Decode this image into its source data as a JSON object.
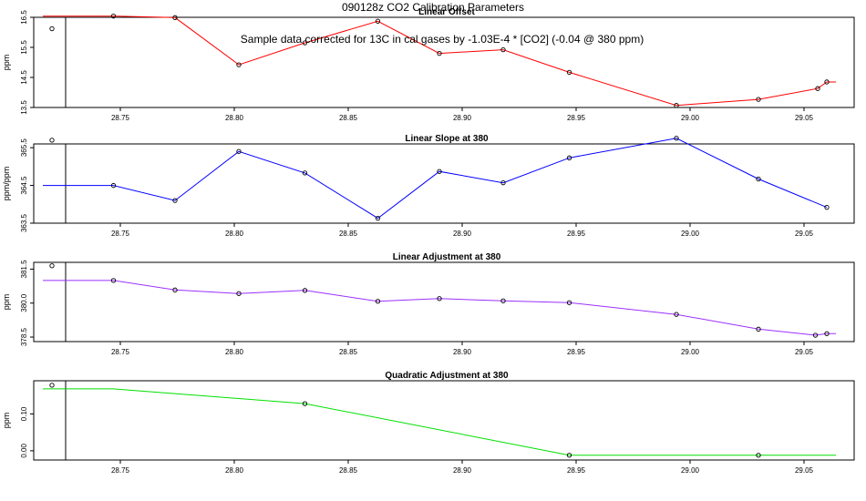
{
  "figure": {
    "title": "090128z   CO2 Calibration Parameters",
    "note": "Sample data corrected for 13C in cal gases by -1.03E-4 * [CO2] (-0.04 @ 380 ppm)"
  },
  "chart_data": [
    {
      "type": "line",
      "title": "Linear Offset",
      "ylabel": "ppm",
      "color": "#ff0000",
      "xlim": [
        28.712,
        29.072
      ],
      "ylim": [
        13.5,
        16.5
      ],
      "x_ticks": [
        "28.75",
        "28.80",
        "28.85",
        "28.90",
        "28.95",
        "29.00",
        "29.05"
      ],
      "y_ticks": [
        "13.5",
        "14.5",
        "15.5",
        "16.5"
      ],
      "vline_x": 28.726,
      "outlier": {
        "x": 28.72,
        "y": 16.12
      },
      "series": [
        {
          "x": [
            28.716,
            28.747,
            28.774,
            28.802,
            28.831,
            28.863,
            28.89,
            28.918,
            28.947,
            28.994,
            29.03,
            29.056,
            29.06,
            29.064
          ],
          "y": [
            16.54,
            16.54,
            16.49,
            14.92,
            15.65,
            16.37,
            15.3,
            15.42,
            14.67,
            13.57,
            13.77,
            14.13,
            14.35,
            14.35
          ],
          "markers": [
            1,
            2,
            3,
            4,
            5,
            6,
            7,
            8,
            9,
            10,
            11,
            12
          ]
        }
      ]
    },
    {
      "type": "line",
      "title": "Linear Slope at 380",
      "ylabel": "ppm/ppm",
      "color": "#0000ff",
      "xlim": [
        28.712,
        29.072
      ],
      "ylim": [
        363.5,
        365.6
      ],
      "x_ticks": [
        "28.75",
        "28.80",
        "28.85",
        "28.90",
        "28.95",
        "29.00",
        "29.05"
      ],
      "y_ticks": [
        "363.5",
        "364.5",
        "365.5"
      ],
      "vline_x": 28.726,
      "outlier": {
        "x": 28.72,
        "y": 365.7
      },
      "series": [
        {
          "x": [
            28.716,
            28.747,
            28.774,
            28.802,
            28.831,
            28.863,
            28.89,
            28.918,
            28.947,
            28.994,
            29.03,
            29.06
          ],
          "y": [
            364.5,
            364.5,
            364.1,
            365.4,
            364.83,
            363.63,
            364.87,
            364.57,
            365.23,
            365.75,
            364.67,
            363.92
          ],
          "markers": [
            1,
            2,
            3,
            4,
            5,
            6,
            7,
            8,
            9,
            10,
            11
          ]
        }
      ]
    },
    {
      "type": "line",
      "title": "Linear Adjustment at 380",
      "ylabel": "ppm",
      "color": "#9b30ff",
      "xlim": [
        28.712,
        29.072
      ],
      "ylim": [
        378.3,
        381.8
      ],
      "x_ticks": [
        "28.75",
        "28.80",
        "28.85",
        "28.90",
        "28.95",
        "29.00",
        "29.05"
      ],
      "y_ticks": [
        "378.5",
        "380.0",
        "381.5"
      ],
      "vline_x": 28.726,
      "outlier": {
        "x": 28.72,
        "y": 381.65
      },
      "series": [
        {
          "x": [
            28.716,
            28.747,
            28.774,
            28.802,
            28.831,
            28.863,
            28.89,
            28.918,
            28.947,
            28.994,
            29.03,
            29.055,
            29.06,
            29.064
          ],
          "y": [
            381.0,
            381.0,
            380.58,
            380.42,
            380.56,
            380.08,
            380.2,
            380.1,
            380.02,
            379.5,
            378.85,
            378.58,
            378.65,
            378.65
          ],
          "markers": [
            1,
            2,
            3,
            4,
            5,
            6,
            7,
            8,
            9,
            10,
            11,
            12
          ]
        }
      ]
    },
    {
      "type": "line",
      "title": "Quadratic Adjustment at 380",
      "ylabel": "ppm",
      "color": "#00e000",
      "xlim": [
        28.712,
        29.072
      ],
      "ylim": [
        -0.025,
        0.19
      ],
      "x_ticks": [
        "28.75",
        "28.80",
        "28.85",
        "28.90",
        "28.95",
        "29.00",
        "29.05"
      ],
      "y_ticks": [
        "0.00",
        "0.10"
      ],
      "vline_x": 28.726,
      "outlier": {
        "x": 28.72,
        "y": 0.178
      },
      "series": [
        {
          "x": [
            28.716,
            28.747,
            28.831,
            28.947,
            29.03,
            29.064
          ],
          "y": [
            0.168,
            0.168,
            0.128,
            -0.012,
            -0.012,
            -0.012
          ],
          "markers": [
            2,
            3,
            4
          ]
        }
      ]
    }
  ]
}
